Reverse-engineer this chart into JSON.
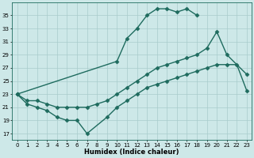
{
  "line_upper": {
    "x": [
      0,
      10,
      11,
      12,
      13,
      14,
      15,
      16,
      17,
      18
    ],
    "y": [
      23,
      28,
      31.5,
      33,
      35,
      36,
      36,
      35.5,
      36,
      35
    ]
  },
  "line_middle": {
    "x": [
      0,
      1,
      2,
      3,
      4,
      5,
      6,
      7,
      8,
      9,
      10,
      11,
      12,
      13,
      14,
      15,
      16,
      17,
      18,
      19,
      20,
      21,
      23
    ],
    "y": [
      23,
      22,
      22,
      21.5,
      21,
      21,
      21,
      21,
      21.5,
      22,
      23,
      24,
      25,
      26,
      27,
      27.5,
      28,
      28.5,
      29,
      30,
      32.5,
      29,
      26
    ]
  },
  "line_lower": {
    "x": [
      0,
      1,
      2,
      3,
      4,
      5,
      6,
      7,
      9,
      10,
      11,
      12,
      13,
      14,
      15,
      16,
      17,
      18,
      19,
      20,
      21,
      22,
      23
    ],
    "y": [
      23,
      21.5,
      21,
      20.5,
      19.5,
      19,
      19,
      17,
      19.5,
      21,
      22,
      23,
      24,
      24.5,
      25,
      25.5,
      26,
      26.5,
      27,
      27.5,
      27.5,
      27.5,
      23.5
    ]
  },
  "xlabel": "Humidex (Indice chaleur)",
  "xlim": [
    -0.5,
    23.5
  ],
  "ylim": [
    16,
    37
  ],
  "yticks": [
    17,
    19,
    21,
    23,
    25,
    27,
    29,
    31,
    33,
    35
  ],
  "xticks": [
    0,
    1,
    2,
    3,
    4,
    5,
    6,
    7,
    8,
    9,
    10,
    11,
    12,
    13,
    14,
    15,
    16,
    17,
    18,
    19,
    20,
    21,
    22,
    23
  ],
  "background_color": "#cde8e8",
  "grid_color": "#a8cccc",
  "line_color": "#1e6b5e"
}
